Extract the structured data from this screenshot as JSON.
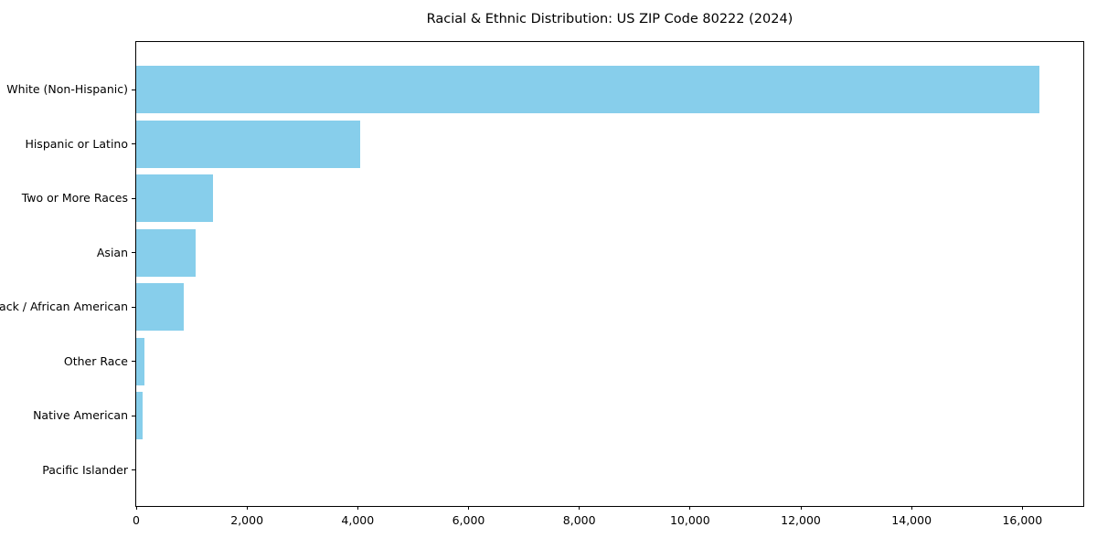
{
  "chart_data": {
    "type": "bar",
    "orientation": "horizontal",
    "title": "Racial & Ethnic Distribution: US ZIP Code 80222 (2024)",
    "categories": [
      "White (Non-Hispanic)",
      "Hispanic or Latino",
      "Two or More Races",
      "Asian",
      "Black / African American",
      "Other Race",
      "Native American",
      "Pacific Islander"
    ],
    "values": [
      16300,
      4050,
      1380,
      1080,
      860,
      150,
      110,
      0
    ],
    "xlabel": "",
    "ylabel": "",
    "xlim": [
      0,
      17100
    ],
    "x_ticks": [
      0,
      2000,
      4000,
      6000,
      8000,
      10000,
      12000,
      14000,
      16000
    ],
    "x_tick_labels": [
      "0",
      "2,000",
      "4,000",
      "6,000",
      "8,000",
      "10,000",
      "12,000",
      "14,000",
      "16,000"
    ],
    "bar_color": "#87CEEB",
    "axis_color": "#000000",
    "grid": false,
    "legend": null
  }
}
